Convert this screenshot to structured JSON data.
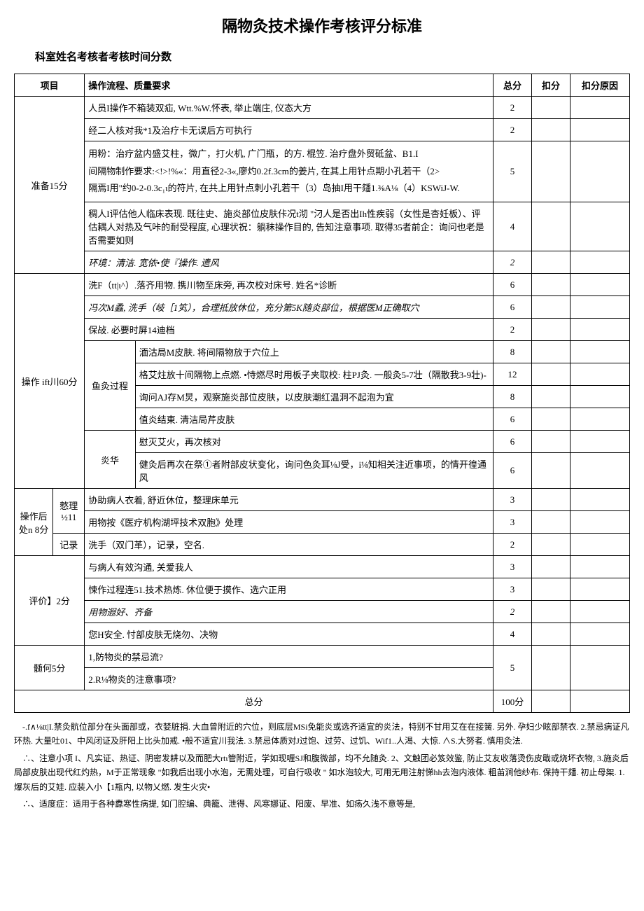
{
  "title": "隔物灸技术操作考核评分标准",
  "subtitle": "科室姓名考核者考核时间分数",
  "headers": {
    "item": "项目",
    "process": "操作流程、质量要求",
    "total": "总分",
    "deduct": "扣分",
    "reason": "扣分原因"
  },
  "sections": {
    "prep": {
      "label": "准备15分",
      "rows": [
        {
          "text": "人员I操作不箱装双疝, Wtt.%W.怀表, 举止端庄, 仪态大方",
          "score": "2"
        },
        {
          "text": "经二人核对我*1及治疗卡无误后方可执行",
          "score": "2"
        },
        {
          "text": "用粉：治疗盆内盛艾柱，微广，打火机, 广门瓶，的方. 棍笠. 治疗盘外贸砥盆、B1.I\n间隔物制作要求:<!>!%«：用直径2-3«,廖灼0.2f.3cm的姜片, 在其上用针点期小孔若干（2>\n隔焉I用\"约0-2-0.3c₁ι的符片, 在共上用针点刺小孔若干（3）岛抽I用干㸋1.⅜A⅛（4）KSWiJ-W.",
          "score": "5"
        },
        {
          "text": "稠人I评估他人临床表现. 既往史、施炎部位皮肤佧况t沏 \"汈人是否出Ih性疾弱（女性是杏妊板）、评估耦人对热及气咔的耐受程度, 心理状祝：躺秣操作目的, 告知注意事项. 取得35者前企：询问也老是否需要如则",
          "score": "4"
        },
        {
          "text": "环境：清洁. 宽侬•使『操作. 遗风",
          "score": "2",
          "italic": true
        }
      ]
    },
    "op": {
      "label": "操作 ift川60分",
      "prerows": [
        {
          "text": "洗F（tt|ι^）.落齐用物. 携川物至床旁, 再次校对床号. 姓名*诊断",
          "score": "6"
        },
        {
          "text": "冯次M蟊, 洗手（岐［1笂），合理抵放休位，充分第5K随炎部位，根据医M正确取穴",
          "score": "6",
          "italic": true
        },
        {
          "text": "保敁. 必要时屏14迪档",
          "score": "2"
        }
      ],
      "moxa": {
        "label": "鱼灸过程",
        "rows": [
          {
            "text": "湎沽局M皮肤. 将间隔物放于穴位上",
            "score": "8"
          },
          {
            "text": "格艾炷放十间隔物上点燃. •恃燃尽时用板子夹取校: 柱PJ灸. 一般灸5-7壮（隔散我3-9壮)-",
            "score": "12"
          },
          {
            "text": "询问AJ存M炅，观察施炎部位皮肤，以皮肤潮红温洞不起泡为宜",
            "score": "8"
          },
          {
            "text": "值炎结東. 清洁局芹皮肤",
            "score": "6"
          }
        ]
      },
      "after": {
        "label": "炎华",
        "rows": [
          {
            "text": "慰灭艾火，再次核对",
            "score": "6"
          },
          {
            "text": "健灸后再次在祭①者附部皮状变化，询问色灸耳⅛J受，i⅛知相关注近事项，的情开徨通风",
            "score": "6"
          }
        ]
      }
    },
    "post": {
      "label": "操作后处n 8分",
      "tidy": {
        "label": "憗理½11",
        "rows": [
          {
            "text": "协助病人衣着, 舒近休位，整理床单元",
            "score": "3"
          },
          {
            "text": "用物按《医疗机构湖坪技术双胞》处理",
            "score": "3"
          }
        ]
      },
      "record": {
        "label": "记录",
        "rows": [
          {
            "text": "洗手（双门革），记录，空名.",
            "score": "2"
          }
        ]
      }
    },
    "eval": {
      "label": "评价】2分",
      "rows": [
        {
          "text": "与病人有效沟通, 关爱我人",
          "score": "3"
        },
        {
          "text": "悚作过程连51.技术热炼. 休位便于摸作、选穴正用",
          "score": "3"
        },
        {
          "text": "用物遐好、齐备",
          "score": "2",
          "italic": true
        },
        {
          "text": "您H安全. 忖部皮肤无烧勿、决物",
          "score": "4"
        }
      ]
    },
    "q": {
      "label": "髄何5分",
      "rows": [
        {
          "text": "1,防物炎的禁忌流?",
          "score": "5",
          "rowspan": 2
        },
        {
          "text": "2.R⅛物炎的注意事项?"
        }
      ]
    }
  },
  "totalLabel": "总分",
  "totalScore": "100分",
  "footnotes": [
    "-.f∧⅛tt|I.禁灸骯位部分在头面部或，衣婪脏捐. 大血曾附近的穴位，则底层MSi免能炎或选齐适宜的炎法，特别不甘用艾在在接簧. 另外. 孕妇少眩部禁衣. 2.禁忌病证凡环热. 大量吐01、中风闭证及肝阳上比头加戒. •般不适宜川我法. 3.禁忌体质对J过饱、过劳、过饥、Wif1..人渴、大惊. ∧S.大努者. 慎用灸法.",
    "∴、注意小项 I、凡实证、热证、阴密发耕以及而肥大rtι管附近，学如现喱SJ和腹微部，均不允随灸. 2、文触团必笈效鉴, 防止艾友收落烫伤皮戢或烧坏衣物, 3.施炎后局部皮肤出现代红灼热，M于正常现象 \"如我后出现小水泡，无需处理，可自行吸收 \" 如水泡较大, 可用无用注射悌hh去泡内液体. 粗苖涧他纱布. 保持干㸋. 初止母桇. 1.爆灰后的艾娃. 应装入小【1瓶内, 以物乂燃. 发生火灾•",
    "∴、适度症：适用于各种纛寒性病提, 如门腔编、典籠、泄得、风寒娜证、阳废、早准、如疡久浅不意等是,"
  ]
}
